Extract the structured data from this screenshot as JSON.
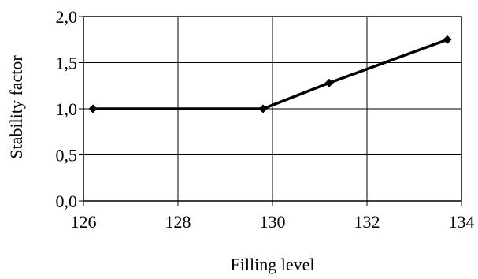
{
  "chart_data": {
    "type": "line",
    "title": "",
    "xlabel": "Filling level",
    "ylabel": "Stability factor",
    "xlim": [
      126,
      134
    ],
    "ylim": [
      0,
      2
    ],
    "x_ticks": [
      126,
      128,
      130,
      132,
      134
    ],
    "x_tick_labels": [
      "126",
      "128",
      "130",
      "132",
      "134"
    ],
    "y_ticks": [
      0,
      0.5,
      1,
      1.5,
      2
    ],
    "y_tick_labels": [
      "0,0",
      "0,5",
      "1,0",
      "1,5",
      "2,0"
    ],
    "grid": true,
    "legend": "none",
    "series": [
      {
        "color": "#000000",
        "marker": "diamond",
        "x": [
          126.2,
          129.8,
          131.2,
          133.7
        ],
        "y": [
          1.0,
          1.0,
          1.28,
          1.75
        ]
      }
    ]
  }
}
